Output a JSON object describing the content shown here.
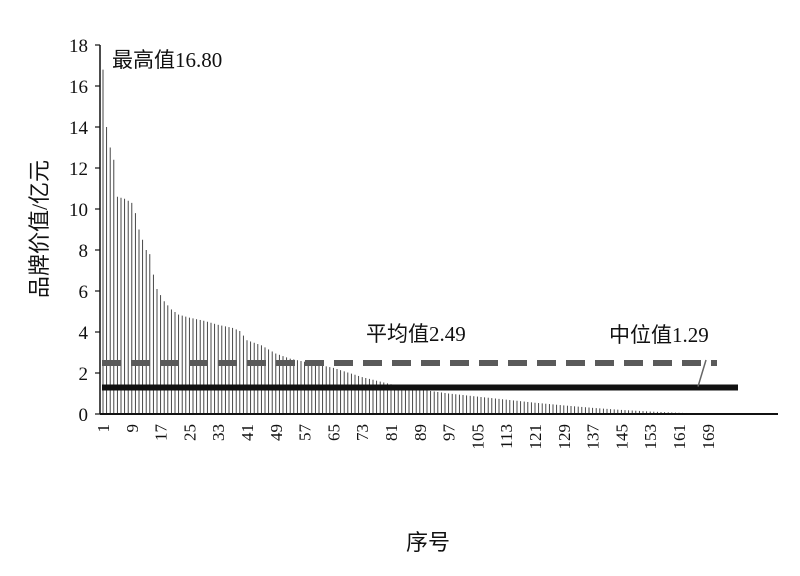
{
  "chart_data": {
    "type": "bar",
    "title": "",
    "xlabel": "序号",
    "ylabel": "品牌价值/亿元",
    "ylim": [
      0,
      18
    ],
    "yticks": [
      0,
      2,
      4,
      6,
      8,
      10,
      12,
      14,
      16,
      18
    ],
    "xticks": [
      1,
      9,
      17,
      25,
      33,
      41,
      49,
      57,
      65,
      73,
      81,
      89,
      97,
      105,
      113,
      121,
      129,
      137,
      145,
      153,
      161,
      169
    ],
    "n_bars": 174,
    "anchor_values": [
      [
        1,
        16.8
      ],
      [
        2,
        14.0
      ],
      [
        3,
        13.0
      ],
      [
        4,
        12.4
      ],
      [
        5,
        10.6
      ],
      [
        6,
        10.55
      ],
      [
        7,
        10.5
      ],
      [
        8,
        10.4
      ],
      [
        9,
        10.3
      ],
      [
        10,
        9.8
      ],
      [
        11,
        9.0
      ],
      [
        12,
        8.5
      ],
      [
        13,
        8.0
      ],
      [
        14,
        7.8
      ],
      [
        15,
        6.8
      ],
      [
        16,
        6.1
      ],
      [
        17,
        5.8
      ],
      [
        18,
        5.5
      ],
      [
        20,
        5.1
      ],
      [
        22,
        4.85
      ],
      [
        25,
        4.7
      ],
      [
        29,
        4.55
      ],
      [
        33,
        4.35
      ],
      [
        37,
        4.2
      ],
      [
        39,
        4.05
      ],
      [
        41,
        3.6
      ],
      [
        45,
        3.35
      ],
      [
        49,
        2.95
      ],
      [
        53,
        2.7
      ],
      [
        57,
        2.55
      ],
      [
        61,
        2.4
      ],
      [
        65,
        2.25
      ],
      [
        73,
        1.8
      ],
      [
        81,
        1.45
      ],
      [
        89,
        1.2
      ],
      [
        97,
        1.0
      ],
      [
        105,
        0.85
      ],
      [
        113,
        0.7
      ],
      [
        121,
        0.55
      ],
      [
        129,
        0.42
      ],
      [
        137,
        0.3
      ],
      [
        145,
        0.2
      ],
      [
        153,
        0.12
      ],
      [
        161,
        0.06
      ],
      [
        169,
        0.02
      ],
      [
        174,
        0.01
      ]
    ],
    "reference_lines": [
      {
        "name": "平均值",
        "value": 2.49,
        "style": "dashed",
        "color": "#5a5a5a"
      },
      {
        "name": "中位值",
        "value": 1.29,
        "style": "solid",
        "color": "#111111"
      }
    ],
    "annotations": {
      "max_label": "最高值16.80",
      "mean_label": "平均值2.49",
      "median_label": "中位值1.29"
    },
    "bar_color": "#333333",
    "grid": false,
    "legend": "none"
  }
}
